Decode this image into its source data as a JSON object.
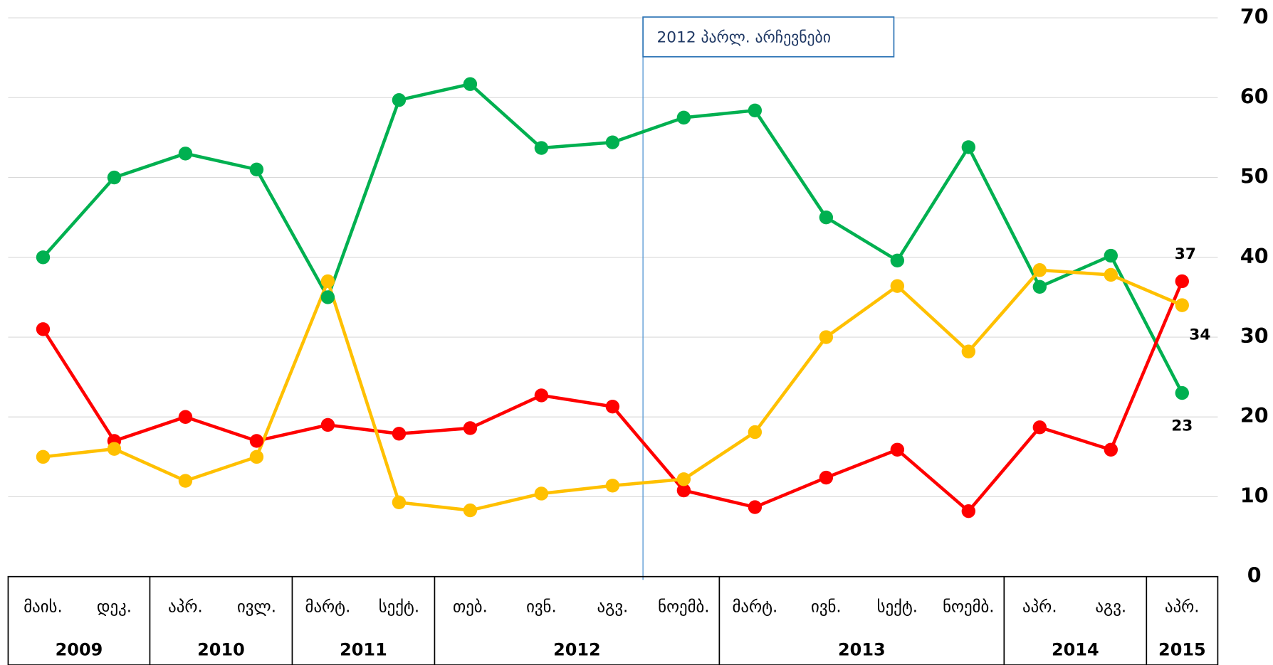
{
  "chart_data": {
    "type": "line",
    "categories": [
      "მაის.",
      "დეკ.",
      "აპრ.",
      "ივლ.",
      "მარტ.",
      "სექტ.",
      "თებ.",
      "ივნ.",
      "აგვ.",
      "ნოემბ.",
      "მარტ.",
      "ივნ.",
      "სექტ.",
      "ნოემბ.",
      "აპრ.",
      "აგვ.",
      "აპრ."
    ],
    "groups": [
      {
        "label": "2009",
        "span": 2
      },
      {
        "label": "2010",
        "span": 2
      },
      {
        "label": "2011",
        "span": 2
      },
      {
        "label": "2012",
        "span": 4
      },
      {
        "label": "2013",
        "span": 4
      },
      {
        "label": "2014",
        "span": 2
      },
      {
        "label": "2015",
        "span": 1
      }
    ],
    "series": [
      {
        "color": "#00b050",
        "values": [
          40,
          50,
          53,
          51,
          35,
          59.7,
          61.7,
          53.7,
          54.4,
          57.5,
          58.4,
          45,
          39.6,
          53.8,
          36.3,
          40.2,
          23
        ]
      },
      {
        "color": "#ff0000",
        "values": [
          31,
          17,
          20,
          17,
          19,
          17.9,
          18.6,
          22.7,
          21.3,
          10.8,
          8.7,
          12.4,
          15.9,
          8.2,
          18.7,
          15.9,
          37
        ]
      },
      {
        "color": "#ffc000",
        "values": [
          15,
          16,
          12,
          15,
          37,
          9.3,
          8.3,
          10.4,
          11.4,
          12.2,
          18.1,
          30,
          36.4,
          28.2,
          38.4,
          37.8,
          34
        ]
      }
    ],
    "label_last": true,
    "annotation": "2012 პარლ. არჩევნები",
    "ylim": [
      0,
      70
    ],
    "yticks": [
      0,
      10,
      20,
      30,
      40,
      50,
      60,
      70
    ],
    "grid": true
  }
}
